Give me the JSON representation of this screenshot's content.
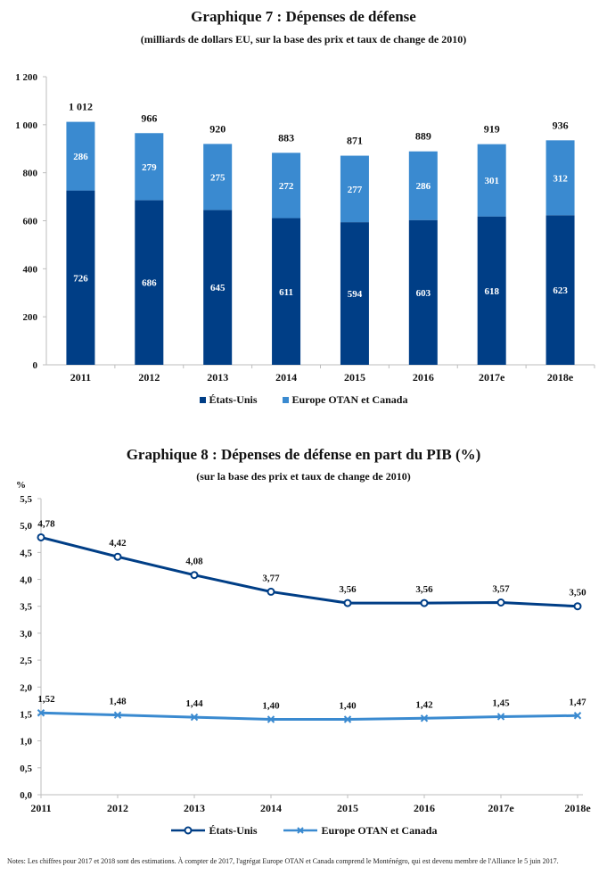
{
  "chart_data": [
    {
      "type": "bar",
      "stacked": true,
      "title": "Graphique 7 : Dépenses de défense",
      "subtitle": "(milliards de dollars EU, sur la base des prix et taux de change de 2010)",
      "categories": [
        "2011",
        "2012",
        "2013",
        "2014",
        "2015",
        "2016",
        "2017e",
        "2018e"
      ],
      "series": [
        {
          "name": "États-Unis",
          "values": [
            726,
            686,
            645,
            611,
            594,
            603,
            618,
            623
          ],
          "color": "#003e86"
        },
        {
          "name": "Europe OTAN et Canada",
          "values": [
            286,
            279,
            275,
            272,
            277,
            286,
            301,
            312
          ],
          "color": "#3a8ad0"
        }
      ],
      "total_labels": [
        "1 012",
        "966",
        "920",
        "883",
        "871",
        "889",
        "919",
        "936"
      ],
      "bottom_labels": [
        "726",
        "686",
        "645",
        "611",
        "594",
        "603",
        "618",
        "623"
      ],
      "top_labels": [
        "286",
        "279",
        "275",
        "272",
        "277",
        "286",
        "301",
        "312"
      ],
      "ylim": [
        0,
        1200
      ],
      "yticks": [
        0,
        200,
        400,
        600,
        800,
        1000,
        1200
      ],
      "ytick_labels": [
        "0",
        "200",
        "400",
        "600",
        "800",
        "1 000",
        "1 200"
      ],
      "grid": false,
      "legend": "bottom"
    },
    {
      "type": "line",
      "title": "Graphique 8 : Dépenses de défense en part du PIB (%)",
      "subtitle": "(sur la base des prix et taux de change de 2010)",
      "ylabel": "%",
      "categories": [
        "2011",
        "2012",
        "2013",
        "2014",
        "2015",
        "2016",
        "2017e",
        "2018e"
      ],
      "series": [
        {
          "name": "États-Unis",
          "values": [
            4.78,
            4.42,
            4.08,
            3.77,
            3.56,
            3.56,
            3.57,
            3.5
          ],
          "color": "#003e86",
          "marker": "circle"
        },
        {
          "name": "Europe OTAN et Canada",
          "values": [
            1.52,
            1.48,
            1.44,
            1.4,
            1.4,
            1.42,
            1.45,
            1.47
          ],
          "color": "#3a8ad0",
          "marker": "x"
        }
      ],
      "value_labels": [
        [
          "4,78",
          "4,42",
          "4,08",
          "3,77",
          "3,56",
          "3,56",
          "3,57",
          "3,50"
        ],
        [
          "1,52",
          "1,48",
          "1,44",
          "1,40",
          "1,40",
          "1,42",
          "1,45",
          "1,47"
        ]
      ],
      "ylim": [
        0,
        5.5
      ],
      "yticks": [
        0,
        0.5,
        1,
        1.5,
        2,
        2.5,
        3,
        3.5,
        4,
        4.5,
        5,
        5.5
      ],
      "ytick_labels": [
        "0,0",
        "0,5",
        "1,0",
        "1,5",
        "2,0",
        "2,5",
        "3,0",
        "3,5",
        "4,0",
        "4,5",
        "5,0",
        "5,5"
      ],
      "grid": false,
      "legend": "bottom"
    }
  ],
  "footnote": "Notes: Les chiffres pour 2017 et 2018 sont des estimations. À compter de 2017, l'agrégat Europe OTAN et Canada comprend le Monténégro, qui est devenu membre de l'Alliance le 5 juin 2017."
}
